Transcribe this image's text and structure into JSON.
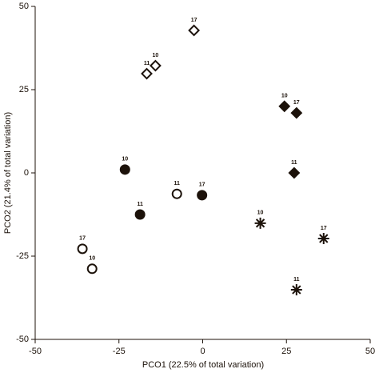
{
  "chart_data": {
    "type": "scatter",
    "xlabel": "PCO1 (22.5% of total variation)",
    "ylabel": "PCO2 (21.4% of total variation)",
    "xlim": [
      -50,
      50
    ],
    "ylim": [
      -50,
      50
    ],
    "xticks": [
      -50,
      -25,
      0,
      25,
      50
    ],
    "yticks": [
      -50,
      -25,
      0,
      25,
      50
    ],
    "color": "#1c120a",
    "series": [
      {
        "marker": "diamond-open",
        "x": [
          -2.6,
          -14.1,
          -16.7
        ],
        "values": [
          42.8,
          32.2,
          29.8
        ],
        "point_labels": [
          "17",
          "10",
          "11"
        ]
      },
      {
        "marker": "diamond-filled",
        "x": [
          24.4,
          28.0,
          27.3
        ],
        "values": [
          20.0,
          18.0,
          0
        ],
        "point_labels": [
          "10",
          "17",
          "11"
        ]
      },
      {
        "marker": "circle-filled",
        "x": [
          -23.2,
          -18.7,
          -0.2
        ],
        "values": [
          1.0,
          -12.5,
          -6.7
        ],
        "point_labels": [
          "10",
          "11",
          "17"
        ]
      },
      {
        "marker": "circle-open",
        "x": [
          -7.7,
          -35.9,
          -33.0
        ],
        "values": [
          -6.3,
          -22.8,
          -28.8
        ],
        "point_labels": [
          "11",
          "17",
          "10"
        ]
      },
      {
        "marker": "asterisk",
        "x": [
          17.2,
          36.1,
          28.0
        ],
        "values": [
          -15.1,
          -19.7,
          -35.1
        ],
        "point_labels": [
          "10",
          "17",
          "11"
        ]
      }
    ]
  }
}
